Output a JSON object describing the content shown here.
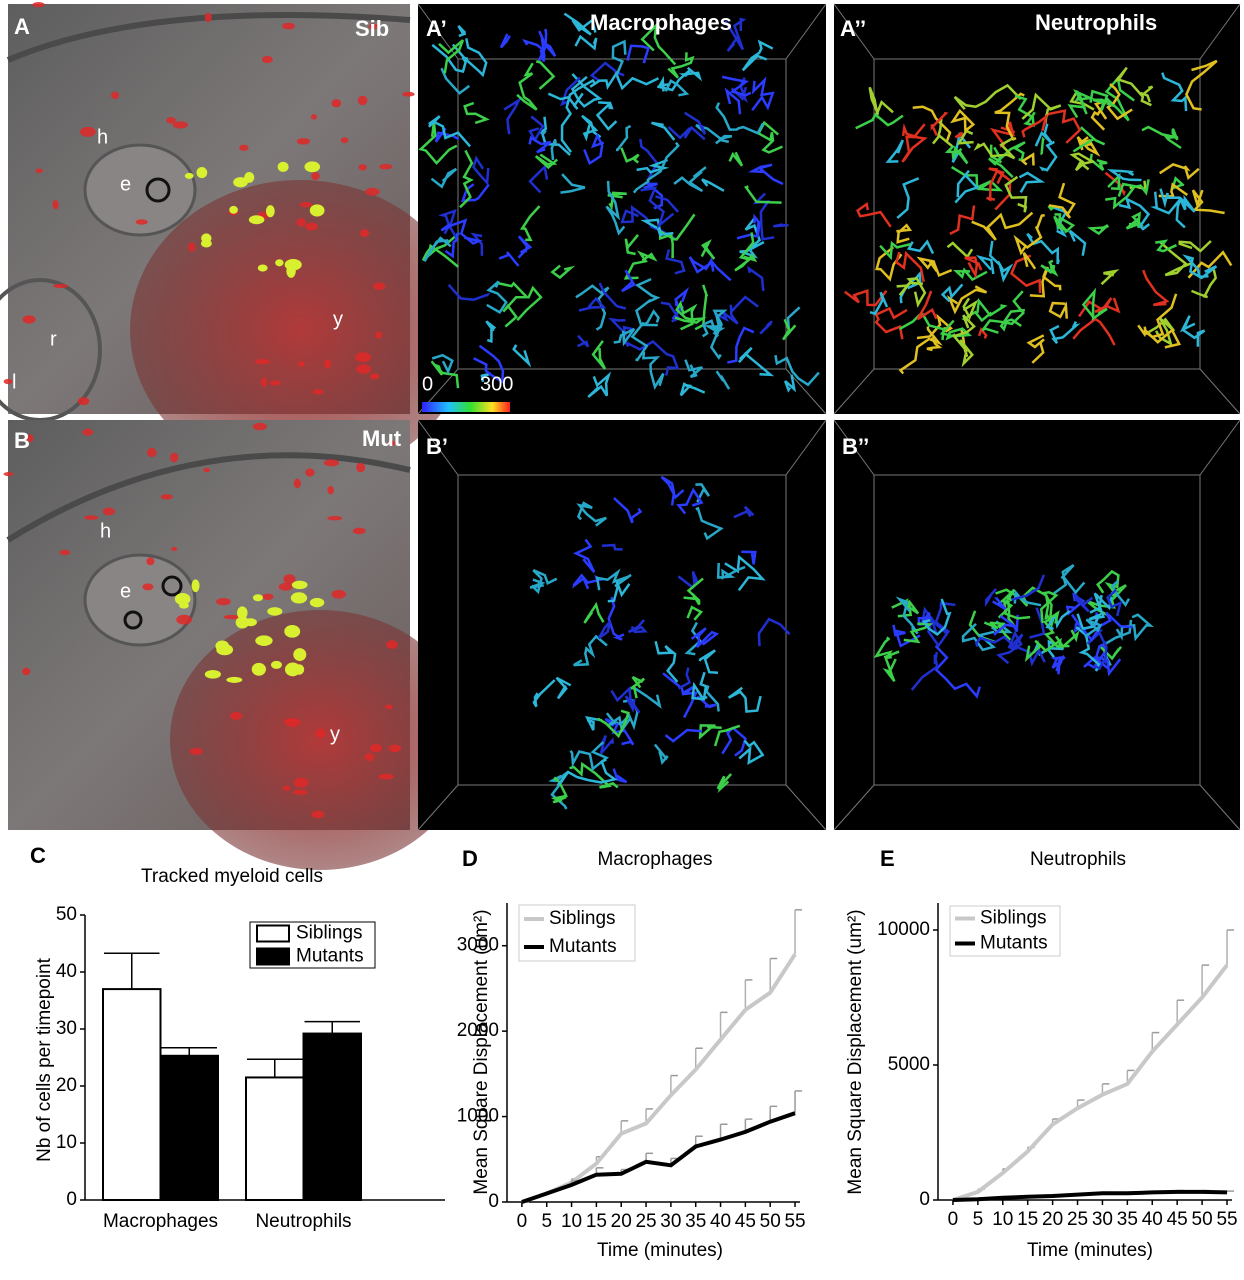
{
  "panels": [
    {
      "label": "A",
      "tag": "Sib",
      "marks": [
        "h",
        "e",
        "r",
        "l",
        "y"
      ]
    },
    {
      "label": "A’",
      "title": "Macrophages",
      "scale": [
        "0",
        "300"
      ]
    },
    {
      "label": "A’’",
      "title": "Neutrophils"
    },
    {
      "label": "B",
      "tag": "Mut",
      "marks": [
        "h",
        "e",
        "y"
      ]
    },
    {
      "label": "B’"
    },
    {
      "label": "B’’"
    }
  ],
  "chart_data": [
    {
      "type": "bar",
      "panel": "C",
      "title": "Tracked myeloid cells",
      "y_label": "Nb of cells per timepoint",
      "categories": [
        "Macrophages",
        "Neutrophils"
      ],
      "series": [
        {
          "name": "Siblings",
          "color": "#ffffff",
          "values": [
            37,
            21.5
          ],
          "errors": [
            6.3,
            3.2
          ]
        },
        {
          "name": "Mutants",
          "color": "#000000",
          "values": [
            25.3,
            29.2
          ],
          "errors": [
            1.4,
            2.1
          ]
        }
      ],
      "ylim": [
        0,
        50
      ],
      "yticks": [
        0,
        10,
        20,
        30,
        40,
        50
      ],
      "legend": "upper right"
    },
    {
      "type": "line",
      "panel": "D",
      "title": "Macrophages",
      "x_label": "Time (minutes)",
      "y_label": "Mean Square Displacement (um²)",
      "x": [
        0,
        5,
        10,
        15,
        20,
        25,
        30,
        35,
        40,
        45,
        50,
        55
      ],
      "series": [
        {
          "name": "Siblings",
          "color": "#c8c8c8",
          "values": [
            0,
            100,
            230,
            450,
            800,
            920,
            1250,
            1550,
            1900,
            2250,
            2450,
            2900
          ],
          "errors": [
            0,
            20,
            40,
            80,
            150,
            170,
            230,
            250,
            320,
            350,
            400,
            520
          ]
        },
        {
          "name": "Mutants",
          "color": "#000000",
          "values": [
            0,
            100,
            200,
            320,
            330,
            470,
            430,
            650,
            730,
            820,
            940,
            1040
          ],
          "errors": [
            0,
            20,
            50,
            80,
            50,
            100,
            80,
            120,
            180,
            150,
            180,
            260
          ]
        }
      ],
      "xlim": [
        -3,
        56
      ],
      "xticks": [
        0,
        5,
        10,
        15,
        20,
        25,
        30,
        35,
        40,
        45,
        50,
        55
      ],
      "ylim": [
        0,
        3500
      ],
      "yticks": [
        0,
        1000,
        2000,
        3000
      ],
      "legend": "upper left"
    },
    {
      "type": "line",
      "panel": "E",
      "title": "Neutrophils",
      "x_label": "Time (minutes)",
      "y_label": "Mean Square Displacement (um²)",
      "x": [
        0,
        5,
        10,
        15,
        20,
        25,
        30,
        35,
        40,
        45,
        50,
        55
      ],
      "series": [
        {
          "name": "Siblings",
          "color": "#c8c8c8",
          "values": [
            0,
            300,
            1000,
            1800,
            2800,
            3400,
            3900,
            4300,
            5500,
            6500,
            7500,
            8700
          ],
          "errors": [
            0,
            100,
            150,
            150,
            200,
            300,
            400,
            500,
            700,
            900,
            1200,
            1300
          ]
        },
        {
          "name": "Mutants",
          "color": "#000000",
          "values": [
            0,
            30,
            80,
            120,
            150,
            200,
            250,
            250,
            280,
            300,
            300,
            280
          ],
          "errors": [
            0,
            10,
            20,
            20,
            30,
            30,
            40,
            40,
            40,
            50,
            50,
            50
          ]
        }
      ],
      "xlim": [
        -3,
        56
      ],
      "xticks": [
        0,
        5,
        10,
        15,
        20,
        25,
        30,
        35,
        40,
        45,
        50,
        55
      ],
      "ylim": [
        0,
        11000
      ],
      "yticks": [
        0,
        5000,
        10000
      ],
      "legend": "upper left"
    }
  ]
}
